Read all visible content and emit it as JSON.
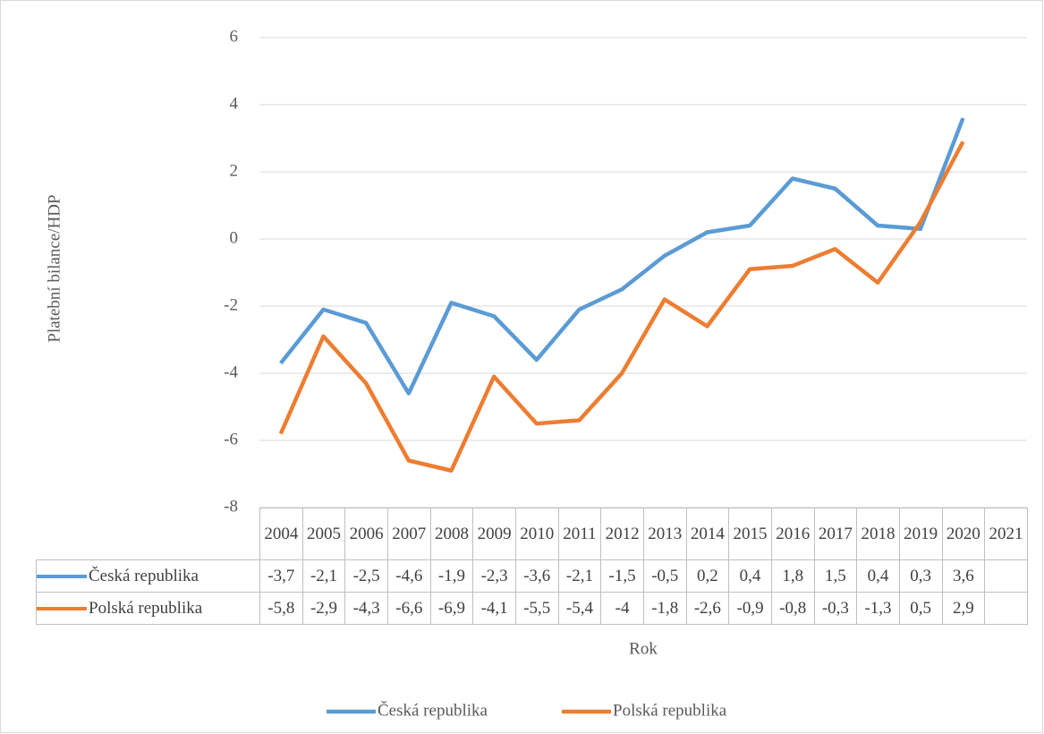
{
  "chart_data": {
    "type": "line",
    "y_label": "Platební bilance/HDP",
    "x_label": "Rok",
    "categories": [
      "2004",
      "2005",
      "2006",
      "2007",
      "2008",
      "2009",
      "2010",
      "2011",
      "2012",
      "2013",
      "2014",
      "2015",
      "2016",
      "2017",
      "2018",
      "2019",
      "2020",
      "2021"
    ],
    "series": [
      {
        "name": "Česká republika",
        "color": "#5b9bd5",
        "values": [
          -3.7,
          -2.1,
          -2.5,
          -4.6,
          -1.9,
          -2.3,
          -3.6,
          -2.1,
          -1.5,
          -0.5,
          0.2,
          0.4,
          1.8,
          1.5,
          0.4,
          0.3,
          3.6,
          null
        ],
        "value_labels": [
          "-3,7",
          "-2,1",
          "-2,5",
          "-4,6",
          "-1,9",
          "-2,3",
          "-3,6",
          "-2,1",
          "-1,5",
          "-0,5",
          "0,2",
          "0,4",
          "1,8",
          "1,5",
          "0,4",
          "0,3",
          "3,6",
          null
        ]
      },
      {
        "name": "Polská republika",
        "color": "#ed7d31",
        "values": [
          -5.8,
          -2.9,
          -4.3,
          -6.6,
          -6.9,
          -4.1,
          -5.5,
          -5.4,
          -4,
          -1.8,
          -2.6,
          -0.9,
          -0.8,
          -0.3,
          -1.3,
          0.5,
          2.9,
          null
        ],
        "value_labels": [
          "-5,8",
          "-2,9",
          "-4,3",
          "-6,6",
          "-6,9",
          "-4,1",
          "-5,5",
          "-5,4",
          "-4",
          "-1,8",
          "-2,6",
          "-0,9",
          "-0,8",
          "-0,3",
          "-1,3",
          "0,5",
          "2,9",
          null
        ]
      }
    ],
    "ylim": [
      -8,
      6
    ],
    "yticks": [
      6,
      4,
      2,
      0,
      -2,
      -4,
      -6,
      -8
    ],
    "grid": true,
    "legend": "bottom"
  }
}
